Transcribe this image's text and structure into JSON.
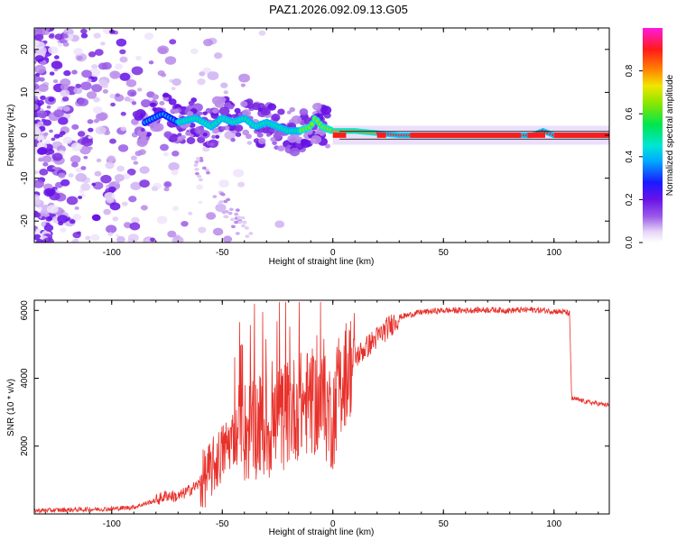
{
  "title": "PAZ1.2026.092.09.13.G05",
  "chart_data": [
    {
      "type": "heatmap",
      "xlabel": "Height of straight line (km)",
      "ylabel": "Frequency (Hz)",
      "xlim": [
        -135,
        125
      ],
      "ylim": [
        -25,
        25
      ],
      "xticks": [
        "-100",
        "-50",
        "0",
        "50",
        "100"
      ],
      "xtick_values": [
        -100,
        -50,
        0,
        50,
        100
      ],
      "yticks": [
        "20",
        "10",
        "0",
        "-10",
        "-20"
      ],
      "ytick_values": [
        20,
        10,
        0,
        -10,
        -20
      ],
      "colorbar": {
        "label": "Normalized spectral amplitude",
        "range": [
          0,
          1
        ],
        "ticks": [
          "0.0",
          "0.2",
          "0.4",
          "0.6",
          "0.8"
        ],
        "tick_values": [
          0.0,
          0.2,
          0.4,
          0.6,
          0.8
        ]
      },
      "dominant_frequency_track": [
        {
          "x": -85,
          "y": 3
        },
        {
          "x": -77,
          "y": 5
        },
        {
          "x": -70,
          "y": 3
        },
        {
          "x": -62,
          "y": 4
        },
        {
          "x": -55,
          "y": 2
        },
        {
          "x": -50,
          "y": 4
        },
        {
          "x": -45,
          "y": 3
        },
        {
          "x": -40,
          "y": 4
        },
        {
          "x": -35,
          "y": 2
        },
        {
          "x": -30,
          "y": 3
        },
        {
          "x": -25,
          "y": 2
        },
        {
          "x": -20,
          "y": 1
        },
        {
          "x": -15,
          "y": 1
        },
        {
          "x": -10,
          "y": 2
        },
        {
          "x": -8,
          "y": 4
        },
        {
          "x": -5,
          "y": 2
        },
        {
          "x": 0,
          "y": 1
        },
        {
          "x": 10,
          "y": 1
        },
        {
          "x": 30,
          "y": 0
        },
        {
          "x": 60,
          "y": 0
        },
        {
          "x": 90,
          "y": 0
        },
        {
          "x": 95,
          "y": 1
        },
        {
          "x": 100,
          "y": 0
        },
        {
          "x": 125,
          "y": 0
        }
      ]
    },
    {
      "type": "line",
      "xlabel": "Height of straight line (km)",
      "ylabel": "SNR (10 * v/v)",
      "xlim": [
        -135,
        125
      ],
      "ylim": [
        0,
        6300
      ],
      "xticks": [
        "-100",
        "-50",
        "0",
        "50",
        "100"
      ],
      "xtick_values": [
        -100,
        -50,
        0,
        50,
        100
      ],
      "yticks": [
        "2000",
        "4000",
        "6000"
      ],
      "ytick_values": [
        2000,
        4000,
        6000
      ],
      "series": [
        {
          "name": "SNR",
          "color": "#e8302a",
          "x": [
            -135,
            -120,
            -100,
            -90,
            -80,
            -75,
            -70,
            -65,
            -60,
            -55,
            -50,
            -45,
            -40,
            -35,
            -30,
            -25,
            -20,
            -15,
            -10,
            -5,
            -2,
            0,
            2,
            5,
            10,
            15,
            20,
            25,
            30,
            40,
            50,
            60,
            70,
            80,
            90,
            100,
            105,
            107,
            108,
            110,
            115,
            120,
            125
          ],
          "values": [
            100,
            120,
            150,
            200,
            400,
            550,
            500,
            700,
            900,
            1300,
            1800,
            2300,
            2400,
            2600,
            2500,
            2700,
            3000,
            3200,
            3300,
            3200,
            3000,
            2800,
            3600,
            4100,
            4600,
            4900,
            5200,
            5500,
            5800,
            5950,
            6000,
            6000,
            6020,
            6000,
            6020,
            5980,
            5950,
            5900,
            3400,
            3380,
            3300,
            3250,
            3200
          ]
        }
      ]
    }
  ]
}
